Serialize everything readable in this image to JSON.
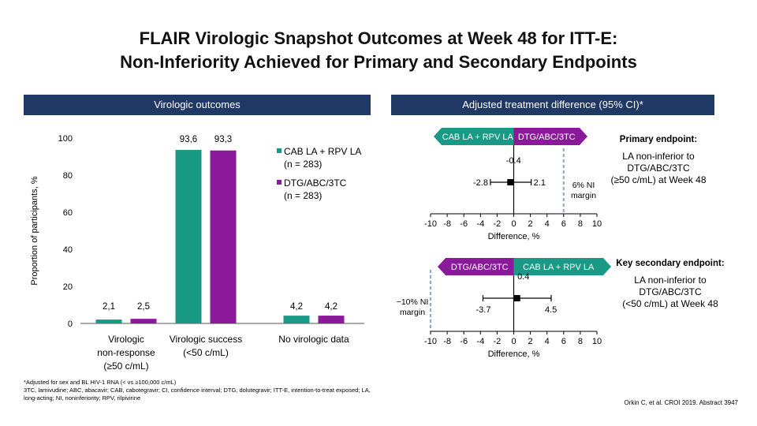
{
  "title_line1": "FLAIR Virologic Snapshot Outcomes at Week 48 for ITT-E:",
  "title_line2": "Non-Inferiority Achieved for Primary and Secondary Endpoints",
  "left_header": "Virologic outcomes",
  "right_header": "Adjusted treatment difference (95% CI)*",
  "colors": {
    "teal": "#1a9a86",
    "purple": "#8b1a9a",
    "header_bg": "#1f3864",
    "ni_line": "#8eaadb"
  },
  "chart_data": [
    {
      "type": "bar",
      "ylabel": "Proportion of participants, %",
      "ylim": [
        0,
        100
      ],
      "yticks": [
        "0",
        "20",
        "40",
        "60",
        "80",
        "100"
      ],
      "categories": [
        "Virologic non-response (≥50 c/mL)",
        "Virologic success (<50 c/mL)",
        "No virologic data"
      ],
      "category_labels": [
        [
          "Virologic",
          "non-response",
          "(≥50 c/mL)"
        ],
        [
          "Virologic success",
          "(<50 c/mL)"
        ],
        [
          "No virologic data"
        ]
      ],
      "series": [
        {
          "name": "CAB LA + RPV LA",
          "n_label": "(n = 283)",
          "values": [
            2.1,
            93.6,
            4.2
          ],
          "value_labels": [
            "2,1",
            "93,6",
            "4,2"
          ]
        },
        {
          "name": "DTG/ABC/3TC",
          "n_label": "(n = 283)",
          "values": [
            2.5,
            93.3,
            4.2
          ],
          "value_labels": [
            "2,5",
            "93,3",
            "4,2"
          ]
        }
      ]
    },
    {
      "type": "forest",
      "label_left": "CAB LA + RPV LA",
      "label_right": "DTG/ABC/3TC",
      "point": -0.4,
      "lower": -2.8,
      "upper": 2.1,
      "point_label": "-0.4",
      "lower_label": "-2.8",
      "upper_label": "2.1",
      "ni_margin": 6,
      "ni_label": [
        "6% NI",
        "margin"
      ],
      "xlim": [
        -10,
        10
      ],
      "xticks": [
        "-10",
        "-8",
        "-6",
        "-4",
        "-2",
        "0",
        "2",
        "4",
        "6",
        "8",
        "10"
      ],
      "xlabel": "Difference, %"
    },
    {
      "type": "forest",
      "label_left": "DTG/ABC/3TC",
      "label_right": "CAB LA + RPV LA",
      "point": 0.4,
      "lower": -3.7,
      "upper": 4.5,
      "point_label": "0.4",
      "lower_label": "-3.7",
      "upper_label": "4.5",
      "ni_margin": -10,
      "ni_label": [
        "−10% NI",
        "margin"
      ],
      "xlim": [
        -10,
        10
      ],
      "xticks": [
        "-10",
        "-8",
        "-6",
        "-4",
        "-2",
        "0",
        "2",
        "4",
        "6",
        "8",
        "10"
      ],
      "xlabel": "Difference, %"
    }
  ],
  "primary": {
    "heading": "Primary endpoint:",
    "text": [
      "LA non-inferior to",
      "DTG/ABC/3TC",
      "(≥50 c/mL) at Week 48"
    ]
  },
  "secondary": {
    "heading": "Key secondary endpoint:",
    "text": [
      "LA non-inferior to",
      "DTG/ABC/3TC",
      "(<50 c/mL) at Week 48"
    ]
  },
  "footnote1": "*Adjusted for sex and BL HIV-1 RNA (< vs ≥100,000 c/mL)",
  "footnote2": "3TC, lamivudine; ABC, abacavir; CAB, cabotegravir; CI, confidence interval; DTG, dolutegravir; ITT-E, intention-to-treat exposed; LA, long-acting; NI, noninferiority; RPV, rilpivirine",
  "citation": "Orkin C, et al. CROI 2019. Abstract 3947"
}
